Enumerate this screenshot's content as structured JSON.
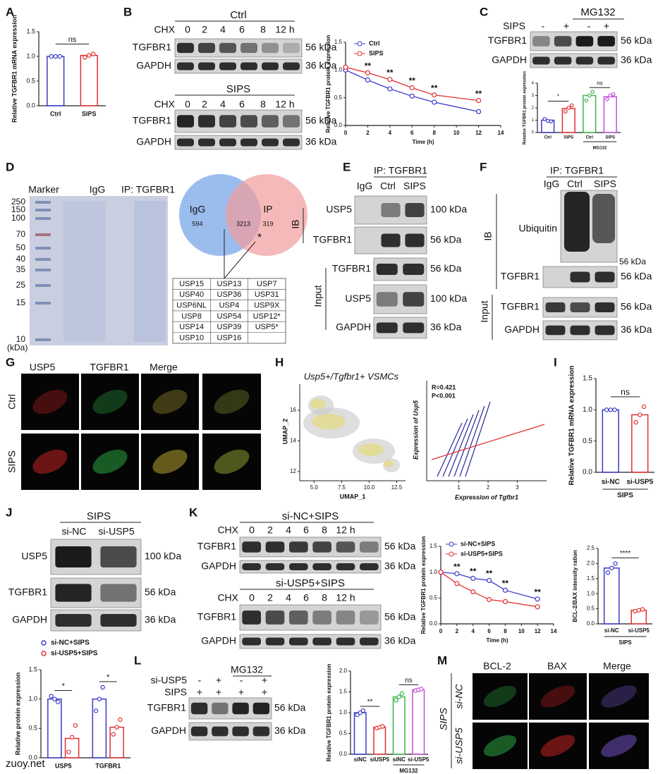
{
  "chart_data": [
    {
      "type": "bar",
      "y_label": "Relative TGFBR1 mRNA expression",
      "categories": [
        "Ctrl",
        "SIPS"
      ],
      "values": [
        1.0,
        1.02
      ],
      "points": [
        [
          1.0,
          1.0,
          1.0
        ],
        [
          0.98,
          1.02,
          1.05
        ]
      ],
      "colors": [
        "#3a3ac8",
        "#e03030"
      ],
      "ylim": [
        0,
        1.5
      ],
      "yticks": [
        {
          "value": 0,
          "label": "0.0"
        },
        {
          "value": 0.5,
          "label": "0.5"
        },
        {
          "value": 1,
          "label": "1.0"
        },
        {
          "value": 1.5,
          "label": "1.5"
        }
      ],
      "annotations": [
        "ns"
      ]
    },
    {
      "type": "line",
      "y_label": "Relative TGFBR1 protein expression",
      "x_label": "Time (h)",
      "x": [
        0,
        2,
        4,
        6,
        8,
        12
      ],
      "series": [
        {
          "name": "Ctrl",
          "color": "#3a3ac8",
          "values": [
            1.0,
            0.82,
            0.66,
            0.53,
            0.42,
            0.25
          ]
        },
        {
          "name": "SIPS",
          "color": "#e03030",
          "values": [
            1.05,
            0.95,
            0.83,
            0.68,
            0.55,
            0.45
          ]
        }
      ],
      "xlim": [
        0,
        14
      ],
      "xticks": [
        0,
        2,
        4,
        6,
        8,
        10,
        12,
        14
      ],
      "ylim": [
        0,
        1.5
      ],
      "yticks": [
        {
          "value": 0,
          "label": "0.0"
        },
        {
          "value": 0.5,
          "label": "0.5"
        },
        {
          "value": 1,
          "label": "1.0"
        },
        {
          "value": 1.5,
          "label": "1.5"
        }
      ],
      "annotations": [
        "**",
        "**",
        "**",
        "**",
        "**"
      ]
    },
    {
      "type": "bar",
      "y_label": "Relative TGFBR1 protein expression",
      "categories": [
        "Ctrl",
        "SIPS",
        "Ctrl",
        "SIPS"
      ],
      "values": [
        1.0,
        1.95,
        3.0,
        2.9
      ],
      "points": [
        [
          1.1,
          0.95,
          0.9
        ],
        [
          1.7,
          2.0,
          2.2
        ],
        [
          2.6,
          3.0,
          3.3
        ],
        [
          2.7,
          3.0,
          3.1
        ]
      ],
      "colors": [
        "#3a3ac8",
        "#e03030",
        "#3cb44b",
        "#c050d8"
      ],
      "ylim": [
        0,
        4
      ],
      "yticks": [
        0,
        1,
        2,
        3,
        4
      ],
      "annotations": [
        "*",
        "ns"
      ],
      "group_label": "MG132"
    },
    {
      "type": "bar",
      "y_label": "Relative TGFBR1 mRNA expression",
      "categories": [
        "si-NC",
        "si-USP5"
      ],
      "values": [
        1.0,
        0.92
      ],
      "points": [
        [
          1.0,
          1.0,
          1.0
        ],
        [
          0.8,
          0.92,
          1.05
        ]
      ],
      "colors": [
        "#3a3ac8",
        "#e03030"
      ],
      "ylim": [
        0,
        1.5
      ],
      "yticks": [
        {
          "value": 0,
          "label": "0.0"
        },
        {
          "value": 0.5,
          "label": "0.5"
        },
        {
          "value": 1,
          "label": "1.0"
        },
        {
          "value": 1.5,
          "label": "1.5"
        }
      ],
      "annotations": [
        "ns"
      ],
      "group_label": "SIPS"
    },
    {
      "type": "bar",
      "y_label": "Relative protein expression",
      "categories": [
        "USP5",
        "TGFBR1"
      ],
      "series": [
        {
          "name": "si-NC+SIPS",
          "color": "#3a3ac8",
          "values": [
            1.0,
            1.0
          ],
          "points": [
            [
              1.05,
              1.0,
              0.95
            ],
            [
              0.8,
              1.0,
              1.2
            ]
          ]
        },
        {
          "name": "si-USP5+SIPS",
          "color": "#e03030",
          "values": [
            0.33,
            0.52
          ],
          "points": [
            [
              0.1,
              0.35,
              0.55
            ],
            [
              0.4,
              0.52,
              0.65
            ]
          ]
        }
      ],
      "ylim": [
        0,
        1.5
      ],
      "yticks": [
        {
          "value": 0,
          "label": "0.0"
        },
        {
          "value": 0.5,
          "label": "0.5"
        },
        {
          "value": 1,
          "label": "1.0"
        },
        {
          "value": 1.5,
          "label": "1.5"
        }
      ],
      "annotations": [
        "*",
        "*"
      ]
    },
    {
      "type": "line",
      "y_label": "Relative TGFBR1 protein expression",
      "x_label": "Time (h)",
      "x": [
        0,
        2,
        4,
        6,
        8,
        12
      ],
      "series": [
        {
          "name": "si-NC+SIPS",
          "color": "#3a3ac8",
          "values": [
            1.0,
            0.97,
            0.88,
            0.84,
            0.65,
            0.48
          ]
        },
        {
          "name": "si-USP5+SIPS",
          "color": "#e03030",
          "values": [
            1.0,
            0.78,
            0.62,
            0.47,
            0.43,
            0.33
          ]
        }
      ],
      "xlim": [
        0,
        14
      ],
      "xticks": [
        0,
        2,
        4,
        6,
        8,
        10,
        12,
        14
      ],
      "ylim": [
        0,
        1.5
      ],
      "yticks": [
        {
          "value": 0,
          "label": "0.0"
        },
        {
          "value": 0.5,
          "label": "0.5"
        },
        {
          "value": 1,
          "label": "1.0"
        },
        {
          "value": 1.5,
          "label": "1.5"
        }
      ],
      "annotations": [
        "**",
        "**",
        "**",
        "**",
        "**"
      ]
    },
    {
      "type": "bar",
      "y_label": "BCL-2/BAX intensity ration",
      "categories": [
        "si-NC",
        "si-USP5"
      ],
      "values": [
        1.85,
        0.45
      ],
      "points": [
        [
          1.7,
          1.85,
          2.0
        ],
        [
          0.42,
          0.45,
          0.48
        ]
      ],
      "colors": [
        "#3a3ac8",
        "#e03030"
      ],
      "ylim": [
        0,
        2.5
      ],
      "yticks": [
        {
          "value": 0,
          "label": "0.0"
        },
        {
          "value": 0.5,
          "label": "0.5"
        },
        {
          "value": 1,
          "label": "1.0"
        },
        {
          "value": 1.5,
          "label": "1.5"
        },
        {
          "value": 2,
          "label": "2.0"
        },
        {
          "value": 2.5,
          "label": "2.5"
        }
      ],
      "annotations": [
        "****"
      ],
      "group_label": "SIPS"
    },
    {
      "type": "bar",
      "y_label": "Relative TGFBR1 protein expression",
      "categories": [
        "siNC",
        "siUSP5",
        "siNC",
        "si-USP5"
      ],
      "values": [
        1.0,
        0.65,
        1.38,
        1.55
      ],
      "points": [
        [
          0.95,
          1.0,
          1.05
        ],
        [
          0.63,
          0.65,
          0.67
        ],
        [
          1.3,
          1.38,
          1.46
        ],
        [
          1.53,
          1.55,
          1.57
        ]
      ],
      "colors": [
        "#3a3ac8",
        "#e03030",
        "#3cb44b",
        "#c050d8"
      ],
      "ylim": [
        0,
        2
      ],
      "yticks": [
        {
          "value": 0,
          "label": "0.0"
        },
        {
          "value": 0.5,
          "label": "0.5"
        },
        {
          "value": 1,
          "label": "1.0"
        },
        {
          "value": 1.5,
          "label": "1.5"
        },
        {
          "value": 2,
          "label": "2.0"
        }
      ],
      "annotations": [
        "**",
        "ns"
      ],
      "group_label": "MG132"
    }
  ],
  "panels": {
    "letters": [
      "A",
      "B",
      "C",
      "D",
      "E",
      "F",
      "G",
      "H",
      "I",
      "J",
      "K",
      "L",
      "M"
    ],
    "B": {
      "blots": [
        {
          "title": "Ctrl",
          "chx": "CHX",
          "lanes": [
            "0",
            "2",
            "4",
            "6",
            "8",
            "12 h"
          ],
          "rows": [
            "TGFBR1",
            "GAPDH"
          ],
          "kda": [
            "56 kDa",
            "36 kDa"
          ]
        },
        {
          "title": "SIPS",
          "chx": "CHX",
          "lanes": [
            "0",
            "2",
            "4",
            "6",
            "8",
            "12 h"
          ],
          "rows": [
            "TGFBR1",
            "GAPDH"
          ],
          "kda": [
            "56 kDa",
            "36 kDa"
          ]
        }
      ]
    },
    "C": {
      "group": "MG132",
      "condition": "SIPS",
      "marks": [
        "-",
        "+",
        "-",
        "+"
      ],
      "rows": [
        "TGFBR1",
        "GAPDH"
      ],
      "kda": [
        "56 kDa",
        "36 kDa"
      ]
    },
    "D": {
      "headers": [
        "Marker",
        "IgG",
        "IP: TGFBR1"
      ],
      "ladder": [
        250,
        150,
        100,
        70,
        50,
        40,
        35,
        25,
        15,
        10
      ],
      "unit": "(kDa)",
      "venn": {
        "left": "IgG",
        "right": "IP",
        "left_count": 594,
        "both": 3213,
        "right_count": 319,
        "star": "*"
      },
      "table": [
        [
          "USP15",
          "USP13",
          "USP7"
        ],
        [
          "USP40",
          "USP36",
          "USP31"
        ],
        [
          "USP6NL",
          "USP4",
          "USP9X"
        ],
        [
          "USP8",
          "USP54",
          "USP12*"
        ],
        [
          "USP14",
          "USP39",
          "USP5*"
        ],
        [
          "USP10",
          "USP16"
        ]
      ]
    },
    "E": {
      "ip": "IP: TGFBR1",
      "lanes": [
        "IgG",
        "Ctrl",
        "SIPS"
      ],
      "ib": "IB",
      "input": "Input",
      "rows": [
        {
          "label": "USP5",
          "kda": "100 kDa"
        },
        {
          "label": "TGFBR1",
          "kda": "56 kDa"
        },
        {
          "label": "TGFBR1",
          "kda": "56 kDa"
        },
        {
          "label": "USP5",
          "kda": "100 kDa"
        },
        {
          "label": "GAPDH",
          "kda": "36 kDa"
        }
      ]
    },
    "F": {
      "ip": "IP: TGFBR1",
      "lanes": [
        "IgG",
        "Ctrl",
        "SIPS"
      ],
      "ib": "IB",
      "input": "Input",
      "rows": [
        {
          "label": "Ubiquitin",
          "kda": "56 kDa"
        },
        {
          "label": "TGFBR1",
          "kda": "56 kDa"
        },
        {
          "label": "TGFBR1",
          "kda": "56 kDa"
        },
        {
          "label": "GAPDH",
          "kda": "36 kDa"
        }
      ]
    },
    "G": {
      "columns": [
        "USP5",
        "TGFBR1",
        "Merge"
      ],
      "rows": [
        "Ctrl",
        "SIPS"
      ]
    },
    "H": {
      "title": "Usp5+/Tgfbr1+ VSMCs",
      "umap": {
        "x_label": "UMAP_1",
        "y_label": "UMAP_2",
        "xlim": [
          3.7,
          13.3
        ],
        "ylim": [
          11.4,
          17.7
        ],
        "xticks": [
          {
            "value": 5,
            "label": "5.0"
          },
          {
            "value": 7.5,
            "label": "7.5"
          },
          {
            "value": 10,
            "label": "10.0"
          },
          {
            "value": 12.5,
            "label": "12.5"
          }
        ],
        "yticks": [
          12,
          14,
          16
        ]
      },
      "correlation": {
        "stats": [
          "R=0.421",
          "P<0.001"
        ],
        "x_label": "Expression of Tgfbr1",
        "y_label": "Expression of Usp5",
        "xlim": [
          -0.1,
          4
        ],
        "xticks": [
          1,
          2,
          3
        ]
      }
    },
    "J": {
      "title": "SIPS",
      "lanes": [
        "si-NC",
        "si-USP5"
      ],
      "rows": [
        {
          "label": "USP5",
          "kda": "100 kDa"
        },
        {
          "label": "TGFBR1",
          "kda": "56 kDa"
        },
        {
          "label": "GAPDH",
          "kda": "36 kDa"
        }
      ]
    },
    "K": {
      "blots": [
        {
          "title": "si-NC+SIPS",
          "chx": "CHX",
          "lanes": [
            "0",
            "2",
            "4",
            "6",
            "8",
            "12 h"
          ],
          "rows": [
            "TGFBR1",
            "GAPDH"
          ],
          "kda": [
            "56 kDa",
            "36 kDa"
          ]
        },
        {
          "title": "si-USP5+SIPS",
          "chx": "CHX",
          "lanes": [
            "0",
            "2",
            "4",
            "6",
            "8",
            "12 h"
          ],
          "rows": [
            "TGFBR1",
            "GAPDH"
          ],
          "kda": [
            "56 kDa",
            "36 kDa"
          ]
        }
      ]
    },
    "L": {
      "group": "MG132",
      "conditions": [
        {
          "label": "si-USP5",
          "marks": [
            "-",
            "+",
            "-",
            "+"
          ]
        },
        {
          "label": "SIPS",
          "marks": [
            "+",
            "+",
            "+",
            "+"
          ]
        }
      ],
      "rows": [
        "TGFBR1",
        "GAPDH"
      ],
      "kda": [
        "56 kDa",
        "36 kDa"
      ]
    },
    "M": {
      "columns": [
        "BCL-2",
        "BAX",
        "Merge"
      ],
      "group": "SIPS",
      "rows": [
        "si-NC",
        "si-USP5"
      ]
    },
    "watermark": "zuoy.net"
  }
}
